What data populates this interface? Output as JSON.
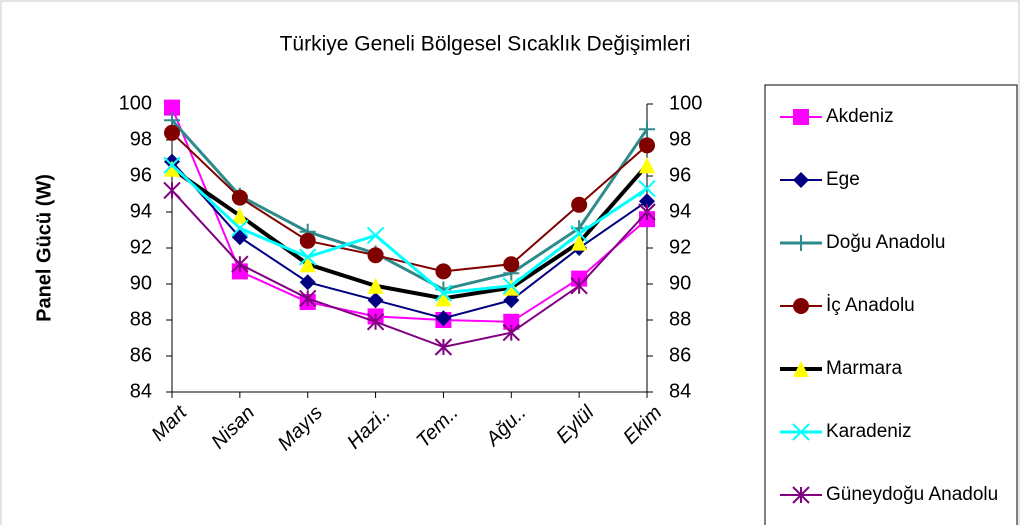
{
  "chart_data": {
    "type": "line",
    "title": "Türkiye Geneli Bölgesel Sıcaklık Değişimleri",
    "y_label": "Panel Gücü (W)",
    "categories": [
      "Mart",
      "Nisan",
      "Mayıs",
      "Hazi..",
      "Tem..",
      "Ağu..",
      "Eylül",
      "Ekim"
    ],
    "ylim": [
      84,
      100
    ],
    "yticks": [
      84,
      86,
      88,
      90,
      92,
      94,
      96,
      98,
      100
    ],
    "y2lim": [
      84,
      100
    ],
    "y2ticks": [
      84,
      86,
      88,
      90,
      92,
      94,
      96,
      98,
      100
    ],
    "grid": false,
    "legend": "right",
    "series": [
      {
        "name": "Akdeniz",
        "color": "#ff00ff",
        "marker": "square",
        "line_width": 2,
        "values": [
          99.8,
          90.7,
          89.0,
          88.2,
          88.0,
          87.9,
          90.3,
          93.6
        ]
      },
      {
        "name": "Ege",
        "color": "#000080",
        "marker": "diamond",
        "line_width": 2,
        "values": [
          96.8,
          92.6,
          90.1,
          89.1,
          88.1,
          89.1,
          92.0,
          94.6
        ]
      },
      {
        "name": "Doğu Anadolu",
        "color": "#2e8b8b",
        "marker": "plus",
        "line_width": 3,
        "values": [
          99.1,
          94.9,
          92.9,
          91.7,
          89.7,
          90.6,
          93.1,
          98.6
        ]
      },
      {
        "name": "İç Anadolu",
        "color": "#800000",
        "marker": "circle",
        "line_width": 2,
        "values": [
          98.4,
          94.8,
          92.4,
          91.6,
          90.7,
          91.1,
          94.4,
          97.7
        ]
      },
      {
        "name": "Marmara",
        "color": "#000000",
        "marker": "triangle",
        "line_width": 4,
        "values": [
          96.4,
          93.8,
          91.1,
          89.9,
          89.2,
          89.8,
          92.3,
          96.6
        ]
      },
      {
        "name": "Karadeniz",
        "color": "#00ffff",
        "marker": "x",
        "line_width": 3,
        "values": [
          96.6,
          93.1,
          91.5,
          92.7,
          89.5,
          89.9,
          92.8,
          95.3
        ]
      },
      {
        "name": "Güneydoğu Anadolu",
        "color": "#800080",
        "marker": "star",
        "line_width": 2,
        "values": [
          95.2,
          91.1,
          89.2,
          87.9,
          86.5,
          87.3,
          89.9,
          94.0
        ]
      }
    ]
  }
}
